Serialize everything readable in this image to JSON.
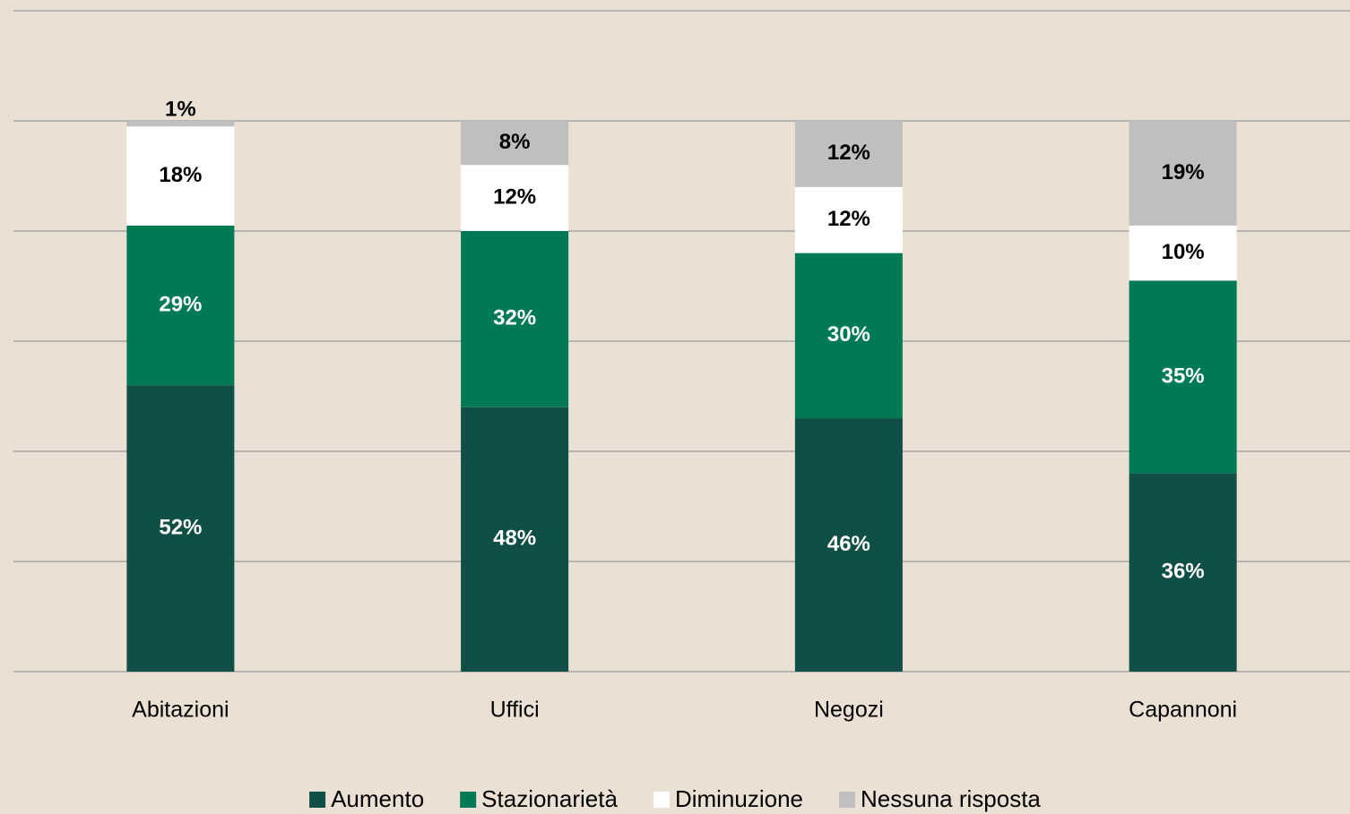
{
  "chart_data": {
    "type": "stacked_bar",
    "categories": [
      "Abitazioni",
      "Uffici",
      "Negozi",
      "Capannoni"
    ],
    "series": [
      {
        "name": "Aumento",
        "color": "#0f4f45",
        "label_color": "#ffffff",
        "values": [
          52,
          48,
          46,
          36
        ],
        "value_labels": [
          "52%",
          "48%",
          "46%",
          "36%"
        ]
      },
      {
        "name": "Stazionarietà",
        "color": "#007a55",
        "label_color": "#ffffff",
        "values": [
          29,
          32,
          30,
          35
        ],
        "value_labels": [
          "29%",
          "32%",
          "30%",
          "35%"
        ]
      },
      {
        "name": "Diminuzione",
        "color": "#ffffff",
        "label_color": "#000000",
        "values": [
          18,
          12,
          12,
          10
        ],
        "value_labels": [
          "18%",
          "12%",
          "12%",
          "10%"
        ]
      },
      {
        "name": "Nessuna risposta",
        "color": "#bfbfbf",
        "label_color": "#000000",
        "values": [
          1,
          8,
          12,
          19
        ],
        "value_labels": [
          "1%",
          "8%",
          "12%",
          "19%"
        ]
      }
    ],
    "ylim": [
      0,
      120
    ],
    "yticks": [
      0,
      20,
      40,
      60,
      80,
      100,
      120
    ],
    "grid": true,
    "legend": "bottom"
  }
}
